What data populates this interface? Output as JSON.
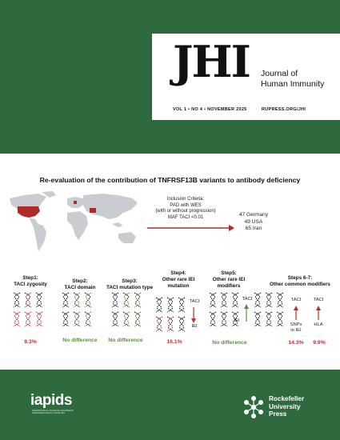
{
  "journal": {
    "logo": "JHI",
    "title_line1": "Journal of",
    "title_line2": "Human Immunity",
    "issue": "VOL 1 • NO 4 • NOVEMBER 2025",
    "website": "RUPRESS.ORG/JHI"
  },
  "abstract": {
    "title": "Re-evaluation of the contribution of TNFRSF13B variants to antibody deficiency",
    "criteria": [
      "Inclusion Criteria:",
      "PAD with WES",
      "(with or without progression)",
      "MAF TACI <0.01"
    ],
    "cohort": [
      "47 Germany",
      "49 USA",
      "65 Iran"
    ]
  },
  "steps": [
    {
      "lines": [
        "Step1:",
        "TACI zygosity"
      ],
      "result": "9.3%",
      "result_color": "red"
    },
    {
      "lines": [
        "Step2:",
        "TACI domain"
      ],
      "result": "No difference",
      "result_color": "green"
    },
    {
      "lines": [
        "Step3:",
        "TACI mutation type"
      ],
      "result": "No difference",
      "result_color": "green"
    },
    {
      "lines": [
        "Step4:",
        "Other rare IEI",
        "mutation"
      ],
      "result": "16.1%",
      "result_color": "red"
    },
    {
      "lines": [
        "Step5:",
        "Other rare IEI",
        "modifiers"
      ],
      "result": "No difference",
      "result_color": "green"
    },
    {
      "lines": [
        "Steps 6-7:",
        "Other common modifiers"
      ],
      "result_a": "14.3%",
      "result_b": "9.9%",
      "result_color": "red"
    }
  ],
  "labels": {
    "taci": "TACI",
    "iei": "IEI",
    "snps_line1": "SNPs",
    "snps_line2": "in IEI",
    "hla": "HLA"
  },
  "colors": {
    "band": "#2e6a3e",
    "red": "#c0302f",
    "green": "#5a8f3c",
    "map": "#c9cdd1"
  },
  "footer": {
    "iapids_logo": "iapids",
    "iapids_subtitle": "INTERNATIONAL ALLIANCE FOR PRIMARY IMMUNODEFICIENCY SOCIETIES",
    "publisher_line1": "Rockefeller",
    "publisher_line2": "University",
    "publisher_line3": "Press"
  }
}
